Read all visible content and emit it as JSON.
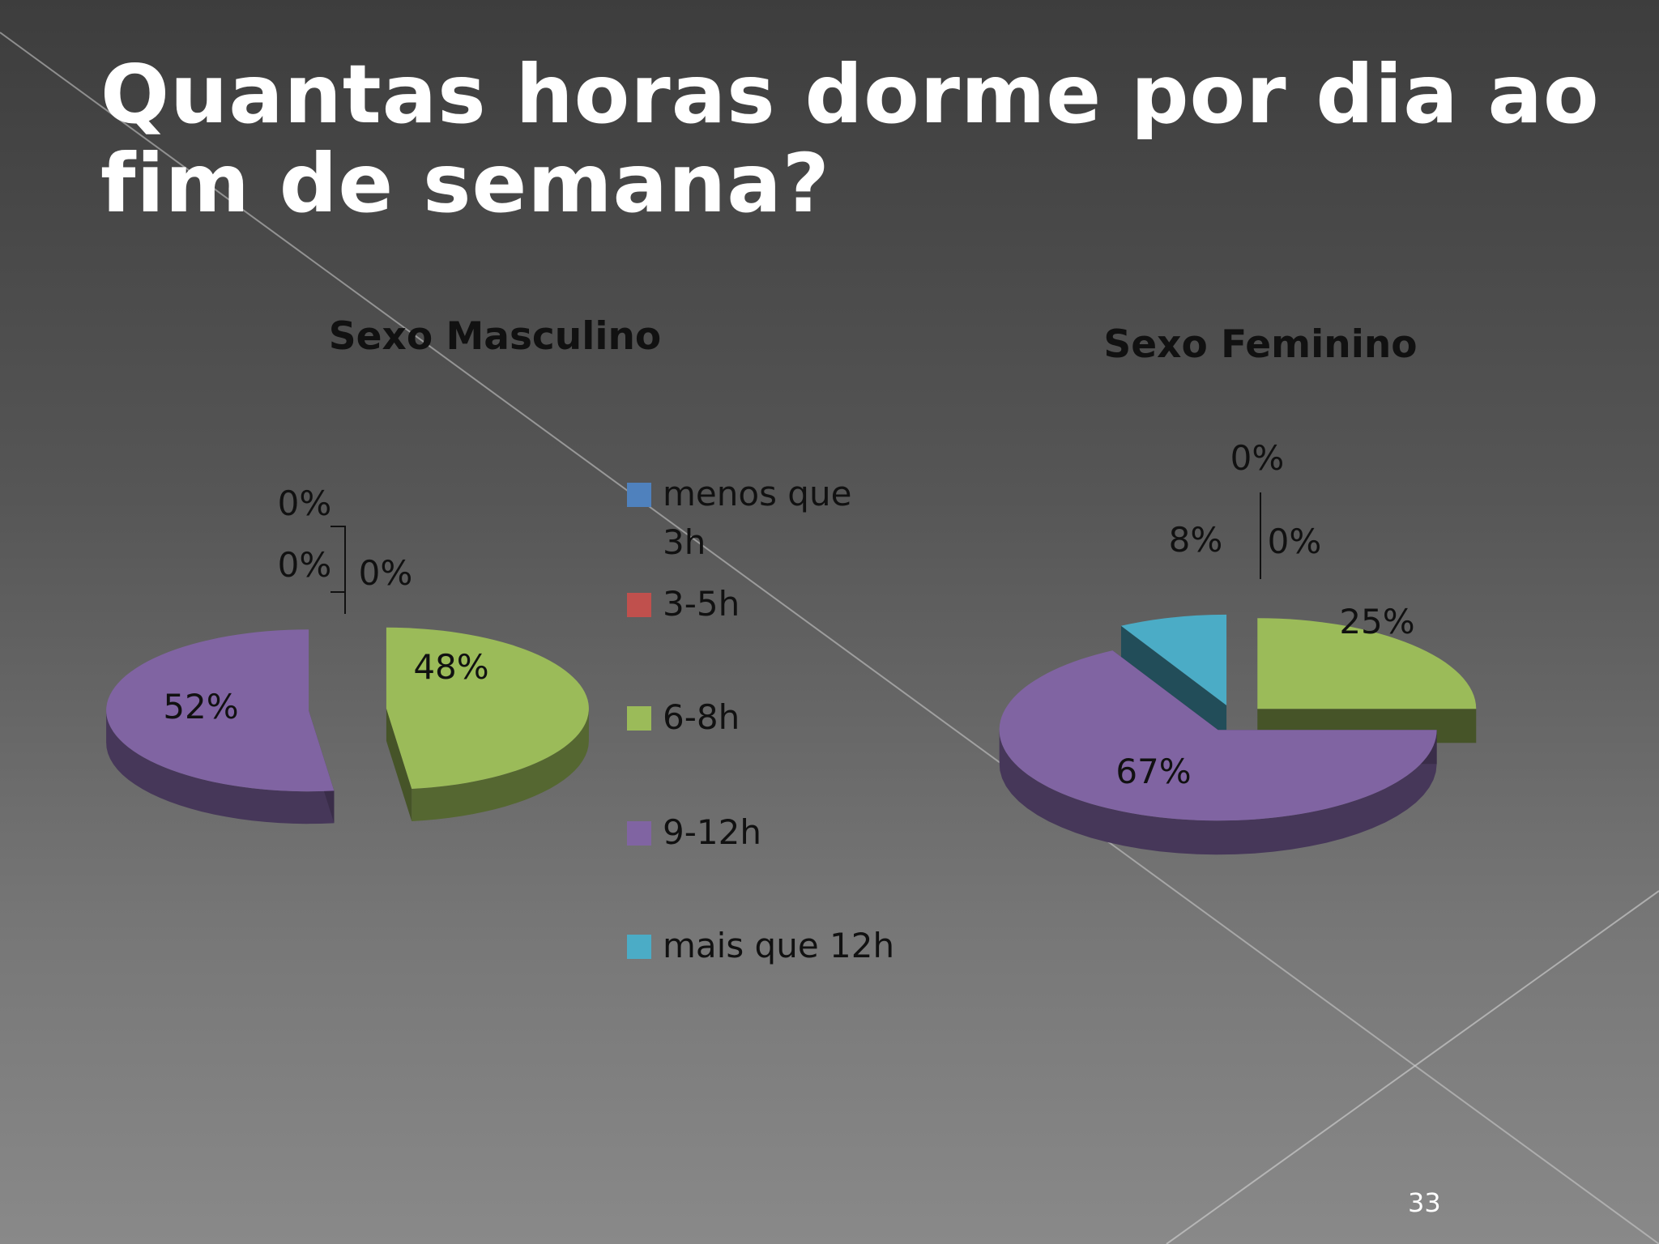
{
  "slide": {
    "title": "Quantas horas dorme por dia ao fim de semana?",
    "page_number": "33"
  },
  "colors": {
    "menos que 3h": "#4f81bd",
    "3-5h": "#c0504d",
    "6-8h": "#9bbb59",
    "9-12h": "#8064a2",
    "mais que 12h": "#4bacc6"
  },
  "legend": [
    {
      "label": "menos que 3h",
      "color": "#4f81bd"
    },
    {
      "label": "3-5h",
      "color": "#c0504d"
    },
    {
      "label": "6-8h",
      "color": "#9bbb59"
    },
    {
      "label": "9-12h",
      "color": "#8064a2"
    },
    {
      "label": "mais que 12h",
      "color": "#4bacc6"
    }
  ],
  "chart_data": [
    {
      "type": "pie",
      "title": "Sexo Masculino",
      "categories": [
        "menos que 3h",
        "3-5h",
        "6-8h",
        "9-12h",
        "mais que 12h"
      ],
      "values": [
        0,
        0,
        48,
        52,
        0
      ],
      "labels": [
        "0%",
        "0%",
        "48%",
        "52%",
        "0%"
      ],
      "exploded": true,
      "style": "3d"
    },
    {
      "type": "pie",
      "title": "Sexo Feminino",
      "categories": [
        "menos que 3h",
        "3-5h",
        "6-8h",
        "9-12h",
        "mais que 12h"
      ],
      "values": [
        0,
        0,
        25,
        67,
        8
      ],
      "labels": [
        "0%",
        "0%",
        "25%",
        "67%",
        "8%"
      ],
      "exploded": true,
      "style": "3d"
    }
  ]
}
